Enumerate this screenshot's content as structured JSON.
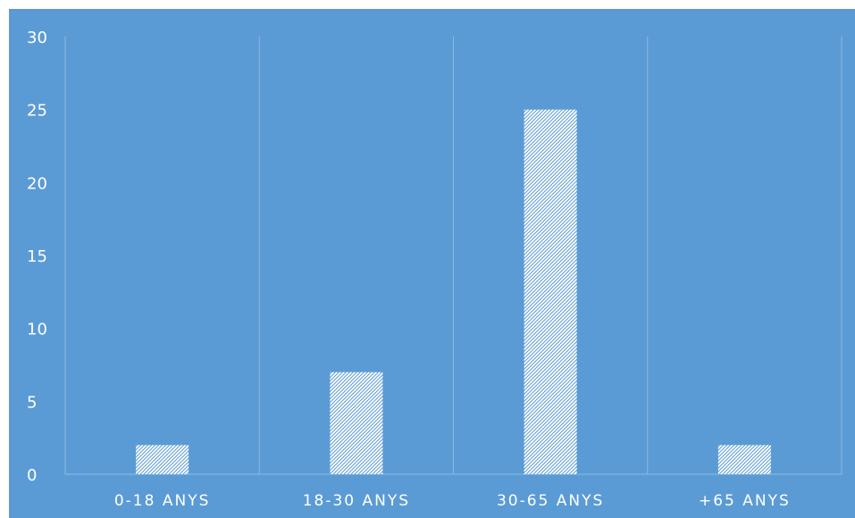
{
  "chart_data": {
    "type": "bar",
    "categories": [
      "0-18 ANYS",
      "18-30 ANYS",
      "30-65 ANYS",
      "+65 ANYS"
    ],
    "values": [
      2,
      7,
      25,
      2
    ],
    "title": "",
    "xlabel": "",
    "ylabel": "",
    "ylim": [
      0,
      30
    ],
    "yticks": [
      0,
      5,
      10,
      15,
      20,
      25,
      30
    ],
    "grid": "vertical category separators",
    "legend": "none",
    "colors": {
      "background": "#5b9bd5",
      "bar_fill": "#ffffff",
      "bar_hatch": "#5b9bd5",
      "text": "#ffffff",
      "gridline": "#8db8e3"
    }
  }
}
